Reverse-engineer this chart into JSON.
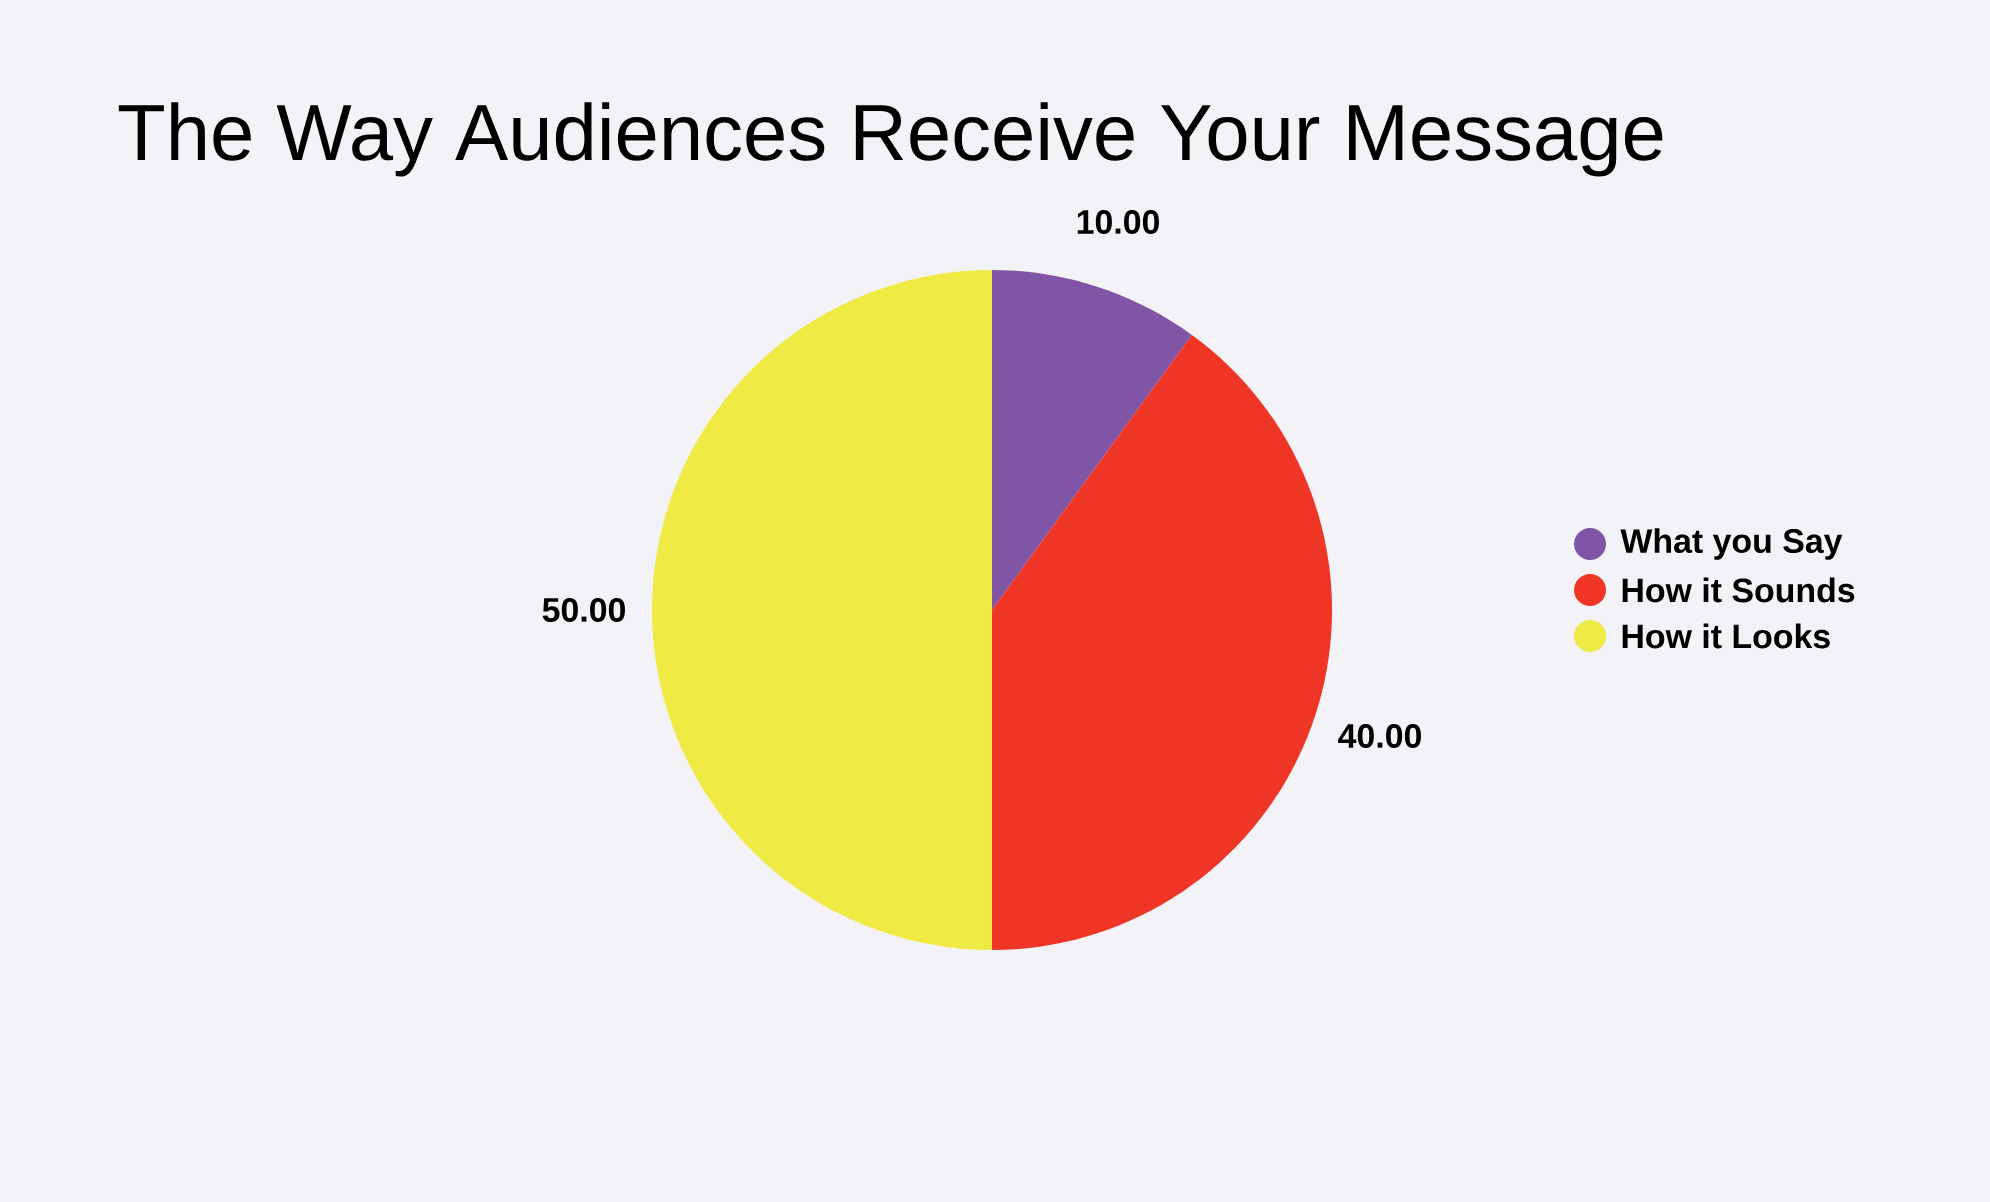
{
  "chart_data": {
    "type": "pie",
    "title": "The Way Audiences Receive Your Message",
    "categories": [
      "What you Say",
      "How it Sounds",
      "How it Looks"
    ],
    "values": [
      10,
      40,
      50
    ],
    "value_labels": [
      "10.00",
      "40.00",
      "50.00"
    ],
    "colors": [
      "#8155a5",
      "#ef3526",
      "#f0ea44"
    ],
    "legend": "right"
  }
}
